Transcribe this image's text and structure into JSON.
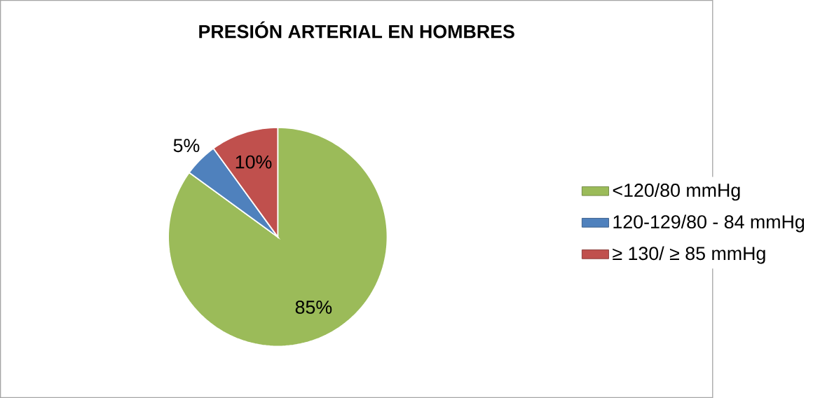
{
  "chart_data": {
    "type": "pie",
    "title": "PRESIÓN ARTERIAL EN HOMBRES",
    "categories": [
      "<120/80 mmHg",
      "120-129/80 - 84 mmHg",
      "≥ 130/ ≥ 85 mmHg"
    ],
    "values": [
      85,
      5,
      10
    ],
    "colors": [
      "#9bbb59",
      "#4f81bd",
      "#c0504d"
    ],
    "value_labels": [
      "85%",
      "5%",
      "10%"
    ],
    "legend": "right"
  }
}
